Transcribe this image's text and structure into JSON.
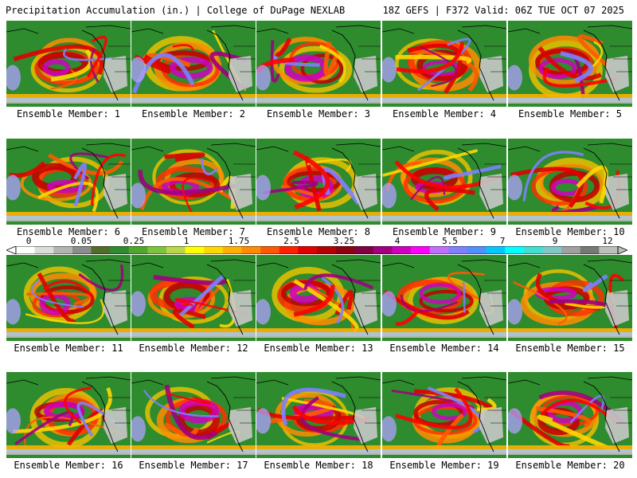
{
  "header": {
    "left": "Precipitation Accumulation (in.) | College of DuPage NEXLAB",
    "right": "18Z GEFS | F372 Valid: 06Z TUE OCT 07 2025"
  },
  "panels": [
    {
      "label": "Ensemble Member: 1"
    },
    {
      "label": "Ensemble Member: 2"
    },
    {
      "label": "Ensemble Member: 3"
    },
    {
      "label": "Ensemble Member: 4"
    },
    {
      "label": "Ensemble Member: 5"
    },
    {
      "label": "Ensemble Member: 6"
    },
    {
      "label": "Ensemble Member: 7"
    },
    {
      "label": "Ensemble Member: 8"
    },
    {
      "label": "Ensemble Member: 9"
    },
    {
      "label": "Ensemble Member: 10"
    },
    {
      "label": "Ensemble Member: 11"
    },
    {
      "label": "Ensemble Member: 12"
    },
    {
      "label": "Ensemble Member: 13"
    },
    {
      "label": "Ensemble Member: 14"
    },
    {
      "label": "Ensemble Member: 15"
    },
    {
      "label": "Ensemble Member: 16"
    },
    {
      "label": "Ensemble Member: 17"
    },
    {
      "label": "Ensemble Member: 18"
    },
    {
      "label": "Ensemble Member: 19"
    },
    {
      "label": "Ensemble Member: 20"
    }
  ],
  "colorbar": {
    "ticks": [
      "0",
      "0.05",
      "0.25",
      "1",
      "1.75",
      "2.5",
      "3.25",
      "4",
      "5.5",
      "7",
      "9",
      "12"
    ],
    "colors": [
      "#ffffff",
      "#dcdcdc",
      "#b4b4b4",
      "#8c8c8c",
      "#506e28",
      "#2e8b2e",
      "#4fa82e",
      "#7cc43c",
      "#b8d848",
      "#ffff00",
      "#ffd700",
      "#ffb000",
      "#ff8c00",
      "#ff5a00",
      "#ff2000",
      "#e00000",
      "#b40000",
      "#8c0010",
      "#800040",
      "#a00080",
      "#d000c0",
      "#ff00ff",
      "#c070ff",
      "#8080ff",
      "#5090ff",
      "#00c8ff",
      "#00ffff",
      "#40e0d0",
      "#80c8c8",
      "#a0a0a0",
      "#787878",
      "#bebebe"
    ]
  }
}
